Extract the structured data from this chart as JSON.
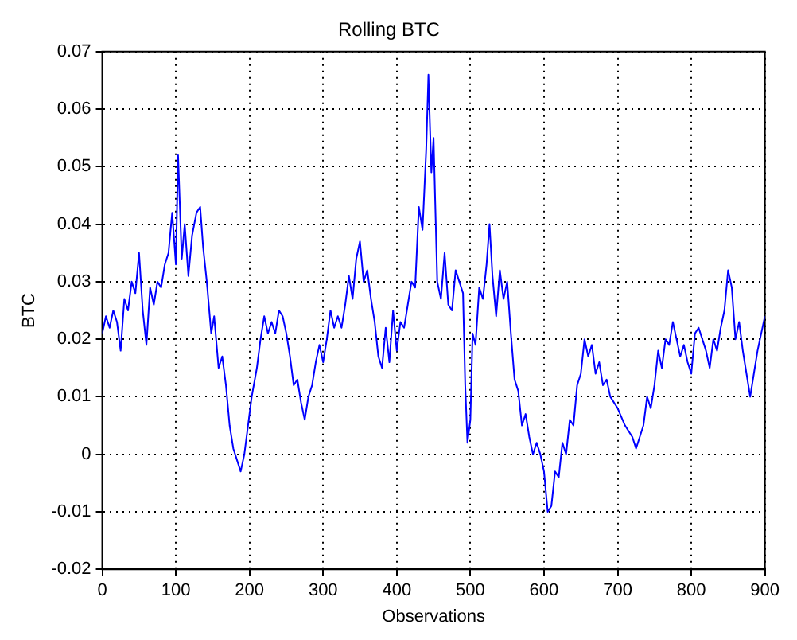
{
  "chart_data": {
    "type": "line",
    "title": "Rolling BTC",
    "xlabel": "Observations",
    "ylabel": "BTC",
    "xlim": [
      0,
      900
    ],
    "xticks": [
      0,
      100,
      200,
      300,
      400,
      500,
      600,
      700,
      800,
      900
    ],
    "ylim": [
      -0.02,
      0.07
    ],
    "yticks": [
      -0.02,
      -0.01,
      0,
      0.01,
      0.02,
      0.03,
      0.04,
      0.05,
      0.06,
      0.07
    ],
    "grid": true,
    "legend": false,
    "marker": "none",
    "line_style": "solid",
    "series": [
      {
        "color": "#0000ff",
        "x": [
          0,
          5,
          10,
          15,
          20,
          25,
          30,
          35,
          40,
          45,
          50,
          55,
          60,
          65,
          70,
          75,
          80,
          85,
          90,
          95,
          100,
          103,
          108,
          112,
          117,
          122,
          128,
          133,
          137,
          142,
          148,
          152,
          158,
          163,
          168,
          173,
          178,
          183,
          188,
          193,
          198,
          203,
          210,
          215,
          220,
          225,
          230,
          235,
          240,
          245,
          250,
          255,
          260,
          265,
          270,
          275,
          280,
          285,
          290,
          295,
          300,
          305,
          310,
          315,
          320,
          325,
          330,
          335,
          340,
          345,
          350,
          355,
          360,
          365,
          370,
          375,
          380,
          385,
          390,
          395,
          400,
          405,
          410,
          415,
          420,
          425,
          430,
          435,
          440,
          443,
          447,
          450,
          455,
          460,
          465,
          470,
          475,
          480,
          485,
          490,
          493,
          496,
          500,
          503,
          507,
          512,
          517,
          522,
          526,
          530,
          535,
          540,
          545,
          550,
          555,
          560,
          565,
          570,
          575,
          580,
          585,
          590,
          595,
          600,
          605,
          610,
          615,
          620,
          625,
          630,
          635,
          640,
          645,
          650,
          655,
          660,
          665,
          670,
          675,
          680,
          685,
          690,
          700,
          710,
          720,
          725,
          730,
          735,
          740,
          745,
          750,
          755,
          760,
          765,
          770,
          775,
          780,
          785,
          790,
          795,
          800,
          805,
          810,
          815,
          820,
          825,
          830,
          835,
          840,
          845,
          850,
          855,
          860,
          865,
          870,
          875,
          880,
          885,
          890,
          895,
          900
        ],
        "values": [
          0.021,
          0.024,
          0.022,
          0.025,
          0.023,
          0.018,
          0.027,
          0.025,
          0.03,
          0.028,
          0.035,
          0.025,
          0.019,
          0.029,
          0.026,
          0.03,
          0.029,
          0.033,
          0.035,
          0.042,
          0.033,
          0.052,
          0.034,
          0.04,
          0.031,
          0.038,
          0.042,
          0.043,
          0.036,
          0.03,
          0.021,
          0.024,
          0.015,
          0.017,
          0.012,
          0.005,
          0.001,
          -0.001,
          -0.003,
          0.0,
          0.005,
          0.01,
          0.015,
          0.02,
          0.024,
          0.021,
          0.023,
          0.021,
          0.025,
          0.024,
          0.021,
          0.017,
          0.012,
          0.013,
          0.009,
          0.006,
          0.01,
          0.012,
          0.016,
          0.019,
          0.016,
          0.02,
          0.025,
          0.022,
          0.024,
          0.022,
          0.026,
          0.031,
          0.027,
          0.034,
          0.037,
          0.03,
          0.032,
          0.027,
          0.023,
          0.017,
          0.015,
          0.022,
          0.016,
          0.025,
          0.018,
          0.023,
          0.022,
          0.026,
          0.03,
          0.029,
          0.043,
          0.039,
          0.053,
          0.066,
          0.049,
          0.055,
          0.03,
          0.027,
          0.035,
          0.026,
          0.025,
          0.032,
          0.03,
          0.028,
          0.012,
          0.002,
          0.006,
          0.021,
          0.019,
          0.029,
          0.027,
          0.033,
          0.04,
          0.031,
          0.024,
          0.032,
          0.027,
          0.03,
          0.021,
          0.013,
          0.011,
          0.005,
          0.007,
          0.003,
          0.0,
          0.002,
          0.0,
          -0.003,
          -0.01,
          -0.009,
          -0.003,
          -0.004,
          0.002,
          0.0,
          0.006,
          0.005,
          0.012,
          0.014,
          0.02,
          0.017,
          0.019,
          0.014,
          0.016,
          0.012,
          0.013,
          0.01,
          0.008,
          0.005,
          0.003,
          0.001,
          0.003,
          0.005,
          0.01,
          0.008,
          0.012,
          0.018,
          0.015,
          0.02,
          0.019,
          0.023,
          0.02,
          0.017,
          0.019,
          0.016,
          0.014,
          0.021,
          0.022,
          0.02,
          0.018,
          0.015,
          0.02,
          0.018,
          0.022,
          0.025,
          0.032,
          0.029,
          0.02,
          0.023,
          0.018,
          0.014,
          0.01,
          0.014,
          0.018,
          0.021,
          0.024
        ]
      }
    ]
  }
}
